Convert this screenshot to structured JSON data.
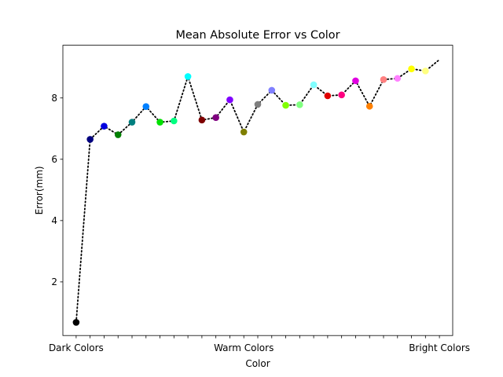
{
  "chart_data": {
    "type": "scatter",
    "title": "Mean Absolute Error vs Color",
    "xlabel": "Color",
    "ylabel": "Error(mm)",
    "ylim": [
      0.25,
      9.72
    ],
    "yticks": [
      2,
      4,
      6,
      8
    ],
    "xlim": [
      -0.95,
      26.95
    ],
    "x_labeled_ticks": [
      {
        "x": 0,
        "label": "Dark Colors"
      },
      {
        "x": 12,
        "label": "Warm Colors"
      },
      {
        "x": 26,
        "label": "Bright Colors"
      }
    ],
    "x_minor_ticks": 27,
    "line_style": "dotted",
    "line_color": "#000000",
    "line_extends_to": {
      "x": 26.0,
      "y": 9.25
    },
    "grid": false,
    "points": [
      {
        "x": 0,
        "y": 0.68,
        "color": "#000000"
      },
      {
        "x": 1,
        "y": 6.65,
        "color": "#00007f"
      },
      {
        "x": 2,
        "y": 7.08,
        "color": "#0000e0"
      },
      {
        "x": 3,
        "y": 6.8,
        "color": "#007f00"
      },
      {
        "x": 4,
        "y": 7.21,
        "color": "#007f7f"
      },
      {
        "x": 5,
        "y": 7.72,
        "color": "#0080ff"
      },
      {
        "x": 6,
        "y": 7.21,
        "color": "#00e000"
      },
      {
        "x": 7,
        "y": 7.25,
        "color": "#00ff80"
      },
      {
        "x": 8,
        "y": 8.7,
        "color": "#00ffff"
      },
      {
        "x": 9,
        "y": 7.28,
        "color": "#7f0000"
      },
      {
        "x": 10,
        "y": 7.36,
        "color": "#7f007f"
      },
      {
        "x": 11,
        "y": 7.94,
        "color": "#8000ff"
      },
      {
        "x": 12,
        "y": 6.89,
        "color": "#7f7f00"
      },
      {
        "x": 13,
        "y": 7.79,
        "color": "#7f7f7f"
      },
      {
        "x": 14,
        "y": 8.25,
        "color": "#8080ff"
      },
      {
        "x": 15,
        "y": 7.76,
        "color": "#80ff00"
      },
      {
        "x": 16,
        "y": 7.78,
        "color": "#80ff80"
      },
      {
        "x": 17,
        "y": 8.43,
        "color": "#80ffff"
      },
      {
        "x": 18,
        "y": 8.07,
        "color": "#e00000"
      },
      {
        "x": 19,
        "y": 8.1,
        "color": "#ff0080"
      },
      {
        "x": 20,
        "y": 8.56,
        "color": "#e000e0"
      },
      {
        "x": 21,
        "y": 7.73,
        "color": "#ff8000"
      },
      {
        "x": 22,
        "y": 8.6,
        "color": "#ff8080"
      },
      {
        "x": 23,
        "y": 8.64,
        "color": "#ff80ff"
      },
      {
        "x": 24,
        "y": 8.95,
        "color": "#ffff00"
      },
      {
        "x": 25,
        "y": 8.88,
        "color": "#ffff80"
      }
    ]
  }
}
